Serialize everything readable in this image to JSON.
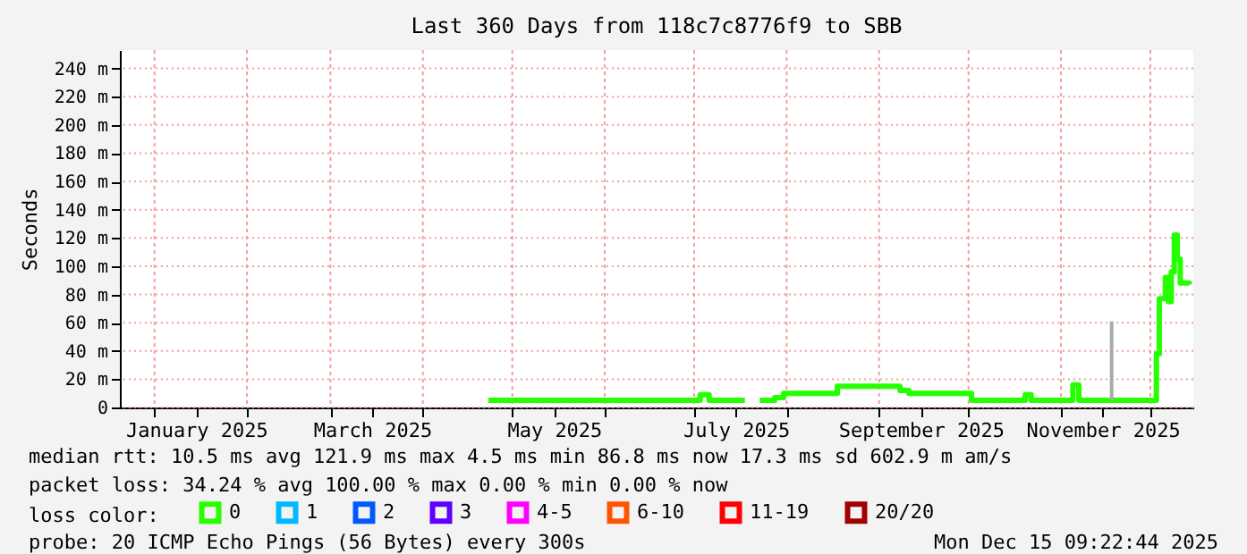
{
  "chart_data": {
    "type": "step",
    "title": "Last 360 Days from 118c7c8776f9 to SBB",
    "ylabel": "Seconds",
    "xlim": [
      "2024-12-20T09:22",
      "2025-12-15T09:22"
    ],
    "xticks": [
      {
        "value": "2025-01-01",
        "label": null
      },
      {
        "value": "2025-01-15",
        "label": "January 2025"
      },
      {
        "value": "2025-02-01",
        "label": null
      },
      {
        "value": "2025-03-01",
        "label": null
      },
      {
        "value": "2025-03-15",
        "label": "March 2025"
      },
      {
        "value": "2025-04-01",
        "label": null
      },
      {
        "value": "2025-05-01",
        "label": null
      },
      {
        "value": "2025-05-15",
        "label": "May 2025"
      },
      {
        "value": "2025-06-01",
        "label": null
      },
      {
        "value": "2025-07-01",
        "label": null
      },
      {
        "value": "2025-07-15",
        "label": "July 2025"
      },
      {
        "value": "2025-08-01",
        "label": null
      },
      {
        "value": "2025-09-01",
        "label": null
      },
      {
        "value": "2025-09-15",
        "label": "September 2025"
      },
      {
        "value": "2025-10-01",
        "label": null
      },
      {
        "value": "2025-11-01",
        "label": null
      },
      {
        "value": "2025-11-15",
        "label": "November 2025"
      },
      {
        "value": "2025-12-01",
        "label": null
      }
    ],
    "ylim": [
      0,
      253
    ],
    "yticks": [
      0,
      {
        "value": 20,
        "label": "20 m"
      },
      {
        "value": 40,
        "label": "40 m"
      },
      {
        "value": 60,
        "label": "60 m"
      },
      {
        "value": 80,
        "label": "80 m"
      },
      {
        "value": 100,
        "label": "100 m"
      },
      {
        "value": 120,
        "label": "120 m"
      },
      {
        "value": 140,
        "label": "140 m"
      },
      {
        "value": 160,
        "label": "160 m"
      },
      {
        "value": 180,
        "label": "180 m"
      },
      {
        "value": 200,
        "label": "200 m"
      },
      {
        "value": 220,
        "label": "220 m"
      },
      {
        "value": 240,
        "label": "240 m"
      }
    ],
    "grid": true,
    "legend": "bottom",
    "legend_title": "loss color:",
    "series": [
      {
        "name": "0",
        "color": "#26ff00",
        "x": [
          "2025-04-23",
          "2025-07-01",
          "2025-07-03",
          "2025-07-06",
          "2025-07-18",
          "2025-07-20",
          "2025-07-23",
          "2025-07-28",
          "2025-07-31",
          "2025-08-16",
          "2025-08-18",
          "2025-09-07",
          "2025-09-08",
          "2025-09-11",
          "2025-10-01",
          "2025-10-02",
          "2025-10-19",
          "2025-10-20",
          "2025-10-22",
          "2025-11-04",
          "2025-11-05",
          "2025-11-07",
          "2025-12-02",
          "2025-12-03",
          "2025-12-04",
          "2025-12-06",
          "2025-12-07",
          "2025-12-08",
          "2025-12-09",
          "2025-12-10",
          "2025-12-11",
          "2025-12-14"
        ],
        "values": [
          5,
          5,
          9,
          5,
          5,
          null,
          5,
          7,
          10,
          10,
          15,
          15,
          12,
          10,
          10,
          5,
          5,
          9,
          5,
          5,
          16,
          5,
          5,
          38,
          77,
          92,
          75,
          96,
          122,
          105,
          88,
          87
        ]
      },
      {
        "name": "1",
        "color": "#00b8ff"
      },
      {
        "name": "2",
        "color": "#0059ff"
      },
      {
        "name": "3",
        "color": "#5e00ff"
      },
      {
        "name": "4-5",
        "color": "#ff00ff"
      },
      {
        "name": "6-10",
        "color": "#ff5500"
      },
      {
        "name": "11-19",
        "color": "#ff0000"
      },
      {
        "name": "20/20",
        "color": "#a10000"
      },
      {
        "type": "line",
        "color": "#aaaaaa",
        "x": [
          "2025-11-18",
          "2025-11-18"
        ],
        "values": [
          5,
          61
        ]
      }
    ],
    "annotations": [
      "median rtt: 10.5 ms avg 121.9 ms max 4.5 ms min 86.8 ms now 17.3 ms sd 602.9 m am/s",
      "packet loss: 34.24 % avg 100.00 % max 0.00 % min 0.00 % now",
      "probe: 20 ICMP Echo Pings (56 Bytes) every 300s",
      "Mon Dec 15 09:22:44 2025"
    ]
  }
}
